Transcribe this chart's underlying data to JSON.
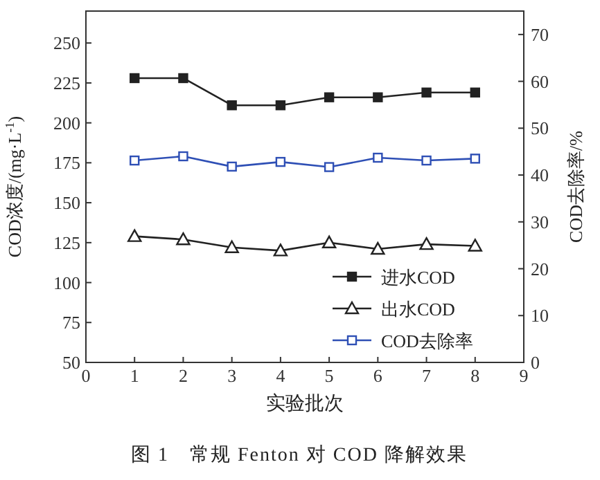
{
  "chart_data": {
    "type": "line",
    "xlabel": "实验批次",
    "ylabel": "COD浓度/(mg·L$^{-1}$)",
    "y2label": "COD去除率/%",
    "x": [
      1,
      2,
      3,
      4,
      5,
      6,
      7,
      8
    ],
    "xlim": [
      0,
      9
    ],
    "xticks": [
      0,
      1,
      2,
      3,
      4,
      5,
      6,
      7,
      8,
      9
    ],
    "ylim": [
      50,
      270
    ],
    "yticks": [
      50,
      75,
      100,
      125,
      150,
      175,
      200,
      225,
      250
    ],
    "y2lim": [
      0,
      75
    ],
    "y2ticks": [
      0,
      10,
      20,
      30,
      40,
      50,
      60,
      70
    ],
    "legend": "bottom right",
    "grid": false,
    "series": [
      {
        "name": "进水COD",
        "color": "#222222",
        "marker": "square",
        "values": [
          228,
          228,
          211,
          211,
          216,
          216,
          219,
          219
        ]
      },
      {
        "name": "出水COD",
        "color": "#222222",
        "marker": "triangle",
        "values": [
          129,
          127,
          122,
          120,
          125,
          121,
          124,
          123
        ]
      },
      {
        "name": "COD去除率",
        "color": "#2e4fb5",
        "marker": "square",
        "axis": "y2",
        "values": [
          43.1,
          44.0,
          41.8,
          42.8,
          41.7,
          43.7,
          43.1,
          43.5
        ]
      }
    ],
    "annotations": [
      "图 1　常规 Fenton 对 COD 降解效果"
    ]
  }
}
